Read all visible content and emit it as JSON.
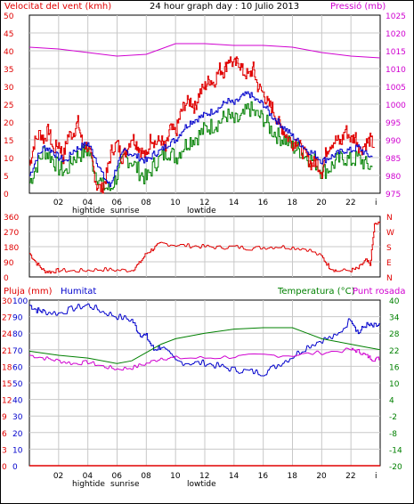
{
  "colors": {
    "wind": "#e00000",
    "gust": "#e00000",
    "avg": "#0000cc",
    "green": "#008000",
    "pressure": "#d000d0",
    "humidity": "#0000cc",
    "temp": "#008000",
    "dew": "#d000d0",
    "rain": "#e00000",
    "dir": "#e00000",
    "grid": "#c8c8c8",
    "bg": "#ffffff",
    "frame": "#000000"
  },
  "chart_data": [
    {
      "type": "line",
      "title": "24 hour graph day : 10 Julio 2013",
      "ylabel_left": "Velocitat del vent (kmh)",
      "ylabel_right": "Pressió (mb)",
      "ylim": [
        0,
        50
      ],
      "y2lim": [
        975,
        1025
      ],
      "y_ticks": [
        "0",
        "5",
        "10",
        "15",
        "20",
        "25",
        "30",
        "35",
        "40",
        "45",
        "50"
      ],
      "y2_ticks": [
        "975",
        "980",
        "985",
        "990",
        "995",
        "1000",
        "1005",
        "1010",
        "1015",
        "1020",
        "1025"
      ],
      "x_ticks": [
        "02",
        "04",
        "06",
        "08",
        "10",
        "12",
        "14",
        "16",
        "18",
        "20",
        "22",
        "i"
      ],
      "x_annotations": [
        "hightide",
        "sunrise",
        "lowtide"
      ],
      "xlim": [
        0,
        24
      ],
      "series": [
        {
          "role": "gust",
          "x": [
            0,
            0.3,
            0.7,
            1,
            1.3,
            1.6,
            2,
            2.3,
            2.6,
            3,
            3.3,
            3.6,
            4,
            4.3,
            4.6,
            5,
            5.3,
            5.6,
            6,
            6.3,
            6.6,
            7,
            7.3,
            7.6,
            8,
            8.3,
            8.6,
            9,
            9.3,
            9.6,
            10,
            10.3,
            10.6,
            11,
            11.3,
            11.6,
            12,
            12.3,
            12.6,
            13,
            13.3,
            13.6,
            14,
            14.3,
            14.6,
            15,
            15.3,
            15.6,
            16,
            16.3,
            16.6,
            17,
            17.3,
            17.6,
            18,
            18.3,
            18.6,
            19,
            19.3,
            19.6,
            20,
            20.3,
            20.6,
            21,
            21.3,
            21.6,
            22,
            22.3,
            22.6,
            23,
            23.3,
            23.6
          ],
          "values": [
            8,
            14,
            17,
            15,
            18,
            12,
            14,
            10,
            16,
            17,
            20,
            14,
            13,
            8,
            2,
            1,
            6,
            12,
            14,
            10,
            12,
            16,
            14,
            12,
            10,
            16,
            14,
            15,
            12,
            18,
            17,
            22,
            25,
            26,
            24,
            28,
            30,
            32,
            31,
            35,
            34,
            38,
            36,
            37,
            34,
            33,
            35,
            30,
            28,
            25,
            24,
            20,
            18,
            16,
            14,
            15,
            12,
            10,
            8,
            9,
            6,
            12,
            14,
            15,
            14,
            18,
            15,
            16,
            12,
            14,
            15,
            13
          ]
        },
        {
          "role": "average",
          "x": [
            0,
            0.5,
            1,
            1.5,
            2,
            2.5,
            3,
            3.5,
            4,
            4.5,
            5,
            5.5,
            6,
            6.5,
            7,
            7.5,
            8,
            8.5,
            9,
            9.5,
            10,
            10.5,
            11,
            11.5,
            12,
            12.5,
            13,
            13.5,
            14,
            14.5,
            15,
            15.5,
            16,
            16.5,
            17,
            17.5,
            18,
            18.5,
            19,
            19.5,
            20,
            20.5,
            21,
            21.5,
            22,
            22.5,
            23,
            23.5
          ],
          "values": [
            5,
            10,
            13,
            12,
            10,
            9,
            12,
            13,
            14,
            10,
            5,
            2,
            8,
            12,
            11,
            10,
            9,
            11,
            12,
            14,
            15,
            18,
            20,
            21,
            22,
            23,
            24,
            26,
            25,
            27,
            28,
            26,
            25,
            22,
            20,
            18,
            16,
            14,
            12,
            11,
            9,
            10,
            11,
            12,
            12,
            13,
            11,
            10
          ]
        },
        {
          "role": "green",
          "x": [
            0,
            0.5,
            1,
            1.5,
            2,
            2.5,
            3,
            3.5,
            4,
            4.5,
            5,
            5.5,
            6,
            6.5,
            7,
            7.5,
            8,
            8.5,
            9,
            9.5,
            10,
            10.5,
            11,
            11.5,
            12,
            12.5,
            13,
            13.5,
            14,
            14.5,
            15,
            15.5,
            16,
            16.5,
            17,
            17.5,
            18,
            18.5,
            19,
            19.5,
            20,
            20.5,
            21,
            21.5,
            22,
            22.5,
            23,
            23.5
          ],
          "values": [
            3,
            8,
            12,
            10,
            7,
            6,
            10,
            11,
            12,
            6,
            2,
            1,
            5,
            10,
            9,
            6,
            4,
            8,
            10,
            12,
            10,
            13,
            15,
            16,
            18,
            19,
            20,
            22,
            20,
            21,
            24,
            22,
            21,
            18,
            16,
            15,
            13,
            12,
            10,
            9,
            6,
            7,
            9,
            10,
            9,
            10,
            8,
            7
          ]
        },
        {
          "role": "pressure",
          "x": [
            0,
            2,
            4,
            6,
            8,
            10,
            12,
            14,
            16,
            18,
            20,
            22,
            24
          ],
          "values": [
            1016,
            1015.5,
            1014.5,
            1013.5,
            1014,
            1017,
            1017,
            1016.5,
            1016.5,
            1016,
            1014.5,
            1013.5,
            1013
          ]
        }
      ]
    },
    {
      "type": "line",
      "ylabel_right": [
        "N",
        "W",
        "S",
        "E",
        "N"
      ],
      "ylim": [
        0,
        360
      ],
      "y_ticks": [
        "0",
        "90",
        "180",
        "270",
        "360"
      ],
      "series": [
        {
          "role": "direction",
          "x": [
            0,
            0.5,
            1,
            1.5,
            2,
            3,
            4,
            5,
            6,
            7,
            7.5,
            8,
            8.5,
            9,
            10,
            11,
            12,
            13,
            14,
            15,
            16,
            17,
            18,
            19,
            20,
            20.5,
            21,
            22,
            22.5,
            23,
            23.3,
            23.6,
            24
          ],
          "values": [
            140,
            80,
            35,
            30,
            40,
            35,
            40,
            45,
            40,
            40,
            80,
            140,
            170,
            200,
            190,
            185,
            180,
            175,
            180,
            170,
            175,
            180,
            175,
            165,
            120,
            60,
            35,
            40,
            50,
            100,
            70,
            310,
            320
          ]
        }
      ]
    },
    {
      "type": "line",
      "ylabel_left": "Pluja (mm)",
      "ylabel_left2": "Humitat",
      "ylabel_right": "Temperatura (°C)",
      "ylabel_right2": "Punt rosada",
      "ylim_rain": [
        0,
        30
      ],
      "ylim_hum": [
        0,
        100
      ],
      "ylim_temp": [
        -20,
        40
      ],
      "rain_ticks": [
        "0",
        "3",
        "6",
        "9",
        "12",
        "15",
        "18",
        "21",
        "24",
        "27",
        "30"
      ],
      "hum_ticks": [
        "0",
        "10",
        "20",
        "30",
        "40",
        "50",
        "60",
        "70",
        "80",
        "90",
        "100"
      ],
      "temp_ticks": [
        "-20",
        "-14",
        "-8",
        "-2",
        "4",
        "10",
        "16",
        "22",
        "28",
        "34",
        "40"
      ],
      "series": [
        {
          "role": "humidity",
          "x": [
            0,
            0.5,
            1,
            2,
            3,
            4,
            5,
            6,
            7,
            7.5,
            8,
            8.5,
            9,
            10,
            11,
            12,
            13,
            14,
            15,
            16,
            17,
            18,
            19,
            20,
            21,
            22,
            22.5,
            23,
            23.5,
            24
          ],
          "values": [
            97,
            94,
            93,
            92,
            95,
            97,
            93,
            90,
            88,
            80,
            78,
            70,
            72,
            63,
            62,
            62,
            60,
            58,
            57,
            56,
            61,
            66,
            72,
            76,
            78,
            89,
            80,
            85,
            84,
            85
          ]
        },
        {
          "role": "temperature",
          "x": [
            0,
            2,
            4,
            6,
            7,
            8,
            9,
            10,
            12,
            14,
            16,
            18,
            19,
            20,
            21,
            22,
            23,
            24
          ],
          "values": [
            21.5,
            20,
            19,
            17,
            18,
            21,
            24,
            26,
            28,
            29.5,
            30,
            30,
            28,
            26,
            25,
            24,
            23,
            22
          ]
        },
        {
          "role": "dewpoint",
          "x": [
            0,
            1,
            2,
            3,
            4,
            5,
            6,
            7,
            8,
            9,
            10,
            12,
            14,
            16,
            18,
            20,
            22,
            22.5,
            23,
            23.5,
            24
          ],
          "values": [
            20,
            19,
            18,
            17,
            17.5,
            16,
            15,
            15.5,
            17,
            19,
            19,
            19,
            19.5,
            20,
            20,
            21,
            22,
            21.5,
            20,
            18.5,
            19
          ]
        },
        {
          "role": "rain",
          "x": [
            0,
            24
          ],
          "values": [
            0,
            0
          ]
        }
      ]
    }
  ]
}
